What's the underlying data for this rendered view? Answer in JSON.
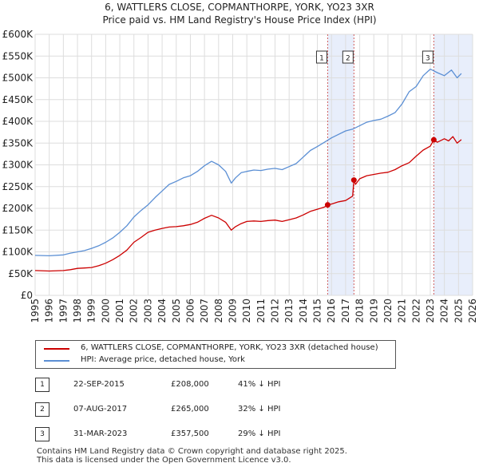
{
  "title_line1": "6, WATTLERS CLOSE, COPMANTHORPE, YORK, YO23 3XR",
  "title_line2": "Price paid vs. HM Land Registry's House Price Index (HPI)",
  "chart_data": {
    "type": "line",
    "title": "6, WATTLERS CLOSE, COPMANTHORPE, YORK, YO23 3XR",
    "subtitle": "Price paid vs. HM Land Registry's House Price Index (HPI)",
    "xlabel": "",
    "ylabel": "",
    "xlim": [
      1995,
      2026
    ],
    "ylim": [
      0,
      600000
    ],
    "y_ticks": [
      {
        "value": 0,
        "label": "£0"
      },
      {
        "value": 50000,
        "label": "£50K"
      },
      {
        "value": 100000,
        "label": "£100K"
      },
      {
        "value": 150000,
        "label": "£150K"
      },
      {
        "value": 200000,
        "label": "£200K"
      },
      {
        "value": 250000,
        "label": "£250K"
      },
      {
        "value": 300000,
        "label": "£300K"
      },
      {
        "value": 350000,
        "label": "£350K"
      },
      {
        "value": 400000,
        "label": "£400K"
      },
      {
        "value": 450000,
        "label": "£450K"
      },
      {
        "value": 500000,
        "label": "£500K"
      },
      {
        "value": 550000,
        "label": "£550K"
      },
      {
        "value": 600000,
        "label": "£600K"
      }
    ],
    "x_ticks": [
      "1995",
      "1996",
      "1997",
      "1998",
      "1999",
      "2000",
      "2001",
      "2002",
      "2003",
      "2004",
      "2005",
      "2006",
      "2007",
      "2008",
      "2009",
      "2010",
      "2011",
      "2012",
      "2013",
      "2014",
      "2015",
      "2016",
      "2017",
      "2018",
      "2019",
      "2020",
      "2021",
      "2022",
      "2023",
      "2024",
      "2025",
      "2026"
    ],
    "grid": true,
    "series": [
      {
        "name": "6, WATTLERS CLOSE, COPMANTHORPE, YORK, YO23 3XR (detached house)",
        "color": "#cc0000",
        "x": [
          1995.0,
          1996.0,
          1997.0,
          1997.5,
          1998.0,
          1998.5,
          1999.0,
          1999.5,
          2000.0,
          2000.5,
          2001.0,
          2001.5,
          2002.0,
          2002.5,
          2003.0,
          2003.5,
          2004.0,
          2004.5,
          2005.0,
          2005.5,
          2006.0,
          2006.5,
          2007.0,
          2007.5,
          2008.0,
          2008.5,
          2008.9,
          2009.2,
          2009.6,
          2010.0,
          2010.5,
          2011.0,
          2011.5,
          2012.0,
          2012.5,
          2013.0,
          2013.5,
          2014.0,
          2014.5,
          2015.0,
          2015.5,
          2015.73,
          2016.0,
          2016.5,
          2017.0,
          2017.5,
          2017.59,
          2017.7,
          2018.0,
          2018.5,
          2019.0,
          2019.5,
          2020.0,
          2020.5,
          2021.0,
          2021.5,
          2022.0,
          2022.5,
          2023.0,
          2023.25,
          2023.5,
          2024.0,
          2024.3,
          2024.6,
          2024.9,
          2025.2
        ],
        "values": [
          57000,
          56000,
          57000,
          59000,
          62000,
          63000,
          64000,
          68000,
          74000,
          82000,
          92000,
          104000,
          122000,
          133000,
          145000,
          150000,
          154000,
          157000,
          158000,
          160000,
          163000,
          168000,
          177000,
          184000,
          178000,
          168000,
          150000,
          158000,
          165000,
          170000,
          171000,
          170000,
          172000,
          173000,
          170000,
          174000,
          178000,
          185000,
          193000,
          198000,
          203000,
          208000,
          210000,
          215000,
          218000,
          228000,
          265000,
          255000,
          268000,
          275000,
          278000,
          281000,
          283000,
          289000,
          298000,
          305000,
          320000,
          334000,
          343000,
          357500,
          352000,
          360000,
          355000,
          365000,
          350000,
          358000
        ]
      },
      {
        "name": "HPI: Average price, detached house, York",
        "color": "#5b8fd4",
        "x": [
          1995.0,
          1996.0,
          1997.0,
          1997.5,
          1998.0,
          1998.5,
          1999.0,
          1999.5,
          2000.0,
          2000.5,
          2001.0,
          2001.5,
          2002.0,
          2002.5,
          2003.0,
          2003.5,
          2004.0,
          2004.5,
          2005.0,
          2005.5,
          2006.0,
          2006.5,
          2007.0,
          2007.5,
          2008.0,
          2008.5,
          2008.9,
          2009.2,
          2009.6,
          2010.0,
          2010.5,
          2011.0,
          2011.5,
          2012.0,
          2012.5,
          2013.0,
          2013.5,
          2014.0,
          2014.5,
          2015.0,
          2015.5,
          2016.0,
          2016.5,
          2017.0,
          2017.5,
          2018.0,
          2018.5,
          2019.0,
          2019.5,
          2020.0,
          2020.5,
          2021.0,
          2021.5,
          2022.0,
          2022.5,
          2023.0,
          2023.5,
          2024.0,
          2024.5,
          2024.9,
          2025.2
        ],
        "values": [
          92000,
          91000,
          93000,
          97000,
          100000,
          103000,
          108000,
          114000,
          122000,
          132000,
          145000,
          160000,
          180000,
          195000,
          208000,
          225000,
          240000,
          255000,
          262000,
          270000,
          275000,
          285000,
          298000,
          308000,
          300000,
          285000,
          258000,
          270000,
          282000,
          285000,
          288000,
          287000,
          290000,
          292000,
          289000,
          296000,
          303000,
          318000,
          333000,
          342000,
          352000,
          362000,
          370000,
          378000,
          382000,
          390000,
          398000,
          402000,
          405000,
          412000,
          420000,
          440000,
          468000,
          480000,
          505000,
          520000,
          512000,
          505000,
          518000,
          500000,
          510000
        ]
      }
    ],
    "transactions": [
      {
        "id": "1",
        "date": "22-SEP-2015",
        "x": 2015.73,
        "price": 208000,
        "price_label": "£208,000",
        "hpi": "41% ↓ HPI"
      },
      {
        "id": "2",
        "date": "07-AUG-2017",
        "x": 2017.59,
        "price": 265000,
        "price_label": "£265,000",
        "hpi": "32% ↓ HPI"
      },
      {
        "id": "3",
        "date": "31-MAR-2023",
        "x": 2023.25,
        "price": 357500,
        "price_label": "£357,500",
        "hpi": "29% ↓ HPI"
      }
    ],
    "shaded_ranges": [
      [
        2015.73,
        2017.59
      ],
      [
        2023.25,
        2026
      ]
    ]
  },
  "legend": {
    "series1_label": "6, WATTLERS CLOSE, COPMANTHORPE, YORK, YO23 3XR (detached house)",
    "series2_label": "HPI: Average price, detached house, York"
  },
  "table": [
    {
      "id": "1",
      "date": "22-SEP-2015",
      "price": "£208,000",
      "hpi": "41% ↓ HPI"
    },
    {
      "id": "2",
      "date": "07-AUG-2017",
      "price": "£265,000",
      "hpi": "32% ↓ HPI"
    },
    {
      "id": "3",
      "date": "31-MAR-2023",
      "price": "£357,500",
      "hpi": "29% ↓ HPI"
    }
  ],
  "footer": {
    "line1": "Contains HM Land Registry data © Crown copyright and database right 2025.",
    "line2": "This data is licensed under the Open Government Licence v3.0."
  }
}
